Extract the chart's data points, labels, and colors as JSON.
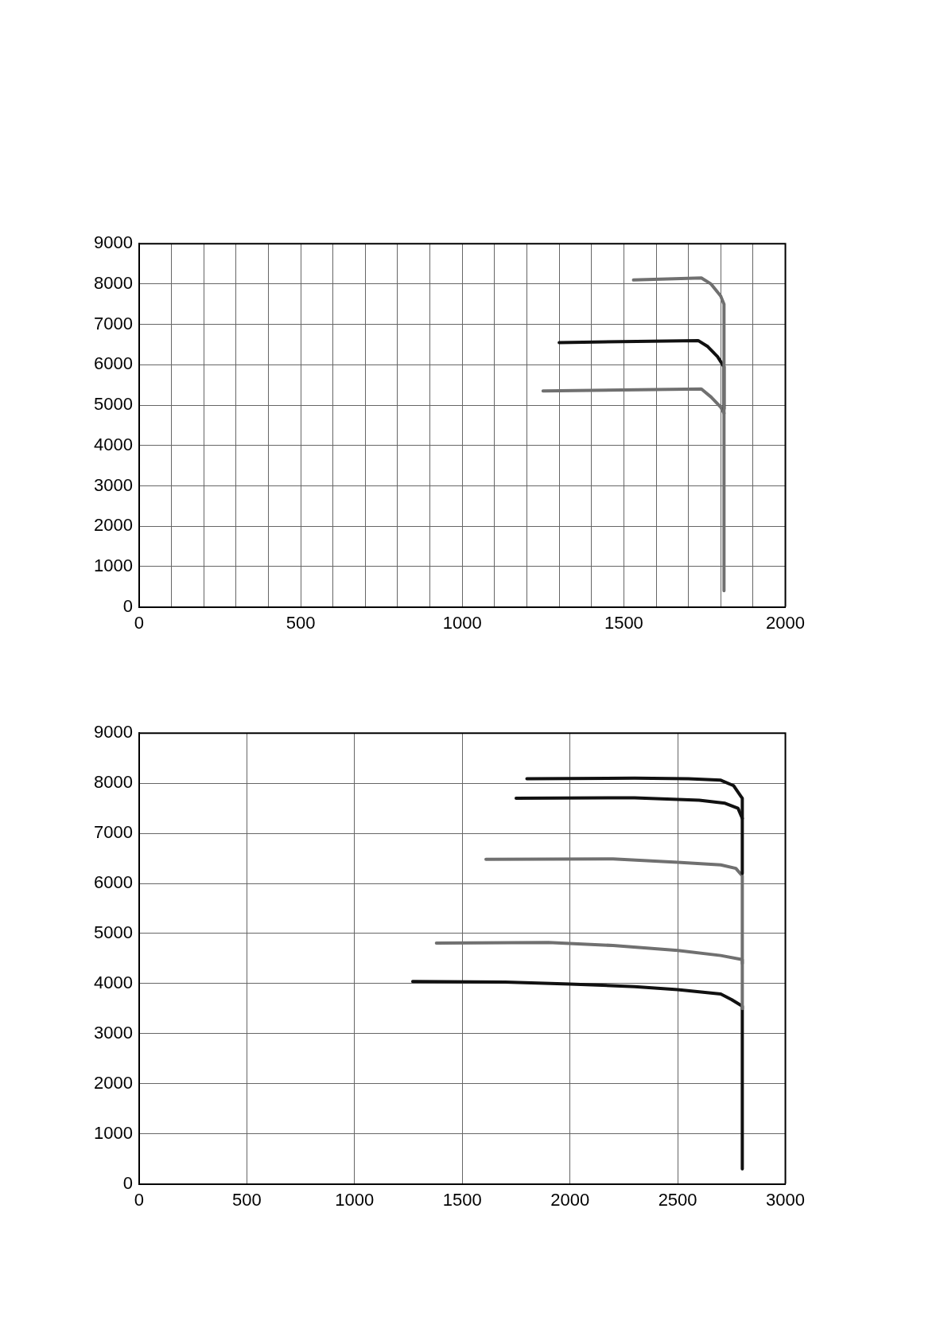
{
  "chart_data": [
    {
      "type": "line",
      "xlim": [
        0,
        2000
      ],
      "ylim": [
        0,
        9000
      ],
      "xticks": [
        0,
        {
          "value": 100,
          "label": null
        },
        {
          "value": 200,
          "label": null
        },
        {
          "value": 300,
          "label": null
        },
        {
          "value": 400,
          "label": null
        },
        500,
        {
          "value": 600,
          "label": null
        },
        {
          "value": 700,
          "label": null
        },
        {
          "value": 800,
          "label": null
        },
        {
          "value": 900,
          "label": null
        },
        1000,
        {
          "value": 1100,
          "label": null
        },
        {
          "value": 1200,
          "label": null
        },
        {
          "value": 1300,
          "label": null
        },
        {
          "value": 1400,
          "label": null
        },
        1500,
        {
          "value": 1600,
          "label": null
        },
        {
          "value": 1700,
          "label": null
        },
        {
          "value": 1800,
          "label": null
        },
        {
          "value": 1900,
          "label": null
        },
        2000
      ],
      "yticks": [
        0,
        1000,
        2000,
        3000,
        4000,
        5000,
        6000,
        7000,
        8000,
        9000
      ],
      "grid": true,
      "legend": false,
      "marker": "none",
      "line_style": "solid",
      "series": [
        {
          "color": "#707070",
          "x": [
            1530,
            1740,
            1770,
            1800,
            1810,
            1810
          ],
          "values": [
            8100,
            8150,
            8000,
            7700,
            7500,
            400
          ]
        },
        {
          "color": "#111111",
          "x": [
            1300,
            1730,
            1760,
            1790,
            1810,
            1810
          ],
          "values": [
            6550,
            6600,
            6450,
            6200,
            5950,
            4900
          ]
        },
        {
          "color": "#707070",
          "x": [
            1250,
            1740,
            1770,
            1800,
            1810
          ],
          "values": [
            5350,
            5400,
            5200,
            4950,
            4800
          ]
        }
      ]
    },
    {
      "type": "line",
      "xlim": [
        0,
        3000
      ],
      "ylim": [
        0,
        9000
      ],
      "xticks": [
        0,
        500,
        1000,
        1500,
        2000,
        2500,
        3000
      ],
      "yticks": [
        0,
        1000,
        2000,
        3000,
        4000,
        5000,
        6000,
        7000,
        8000,
        9000
      ],
      "grid": true,
      "legend": false,
      "marker": "none",
      "line_style": "solid",
      "series": [
        {
          "color": "#111111",
          "x": [
            1800,
            2300,
            2550,
            2700,
            2760,
            2800,
            2800
          ],
          "values": [
            8090,
            8100,
            8090,
            8060,
            7950,
            7700,
            6200
          ]
        },
        {
          "color": "#111111",
          "x": [
            1750,
            2300,
            2600,
            2720,
            2780,
            2800
          ],
          "values": [
            7700,
            7710,
            7660,
            7600,
            7500,
            7300
          ]
        },
        {
          "color": "#707070",
          "x": [
            1610,
            2200,
            2500,
            2700,
            2770,
            2800,
            2800
          ],
          "values": [
            6480,
            6490,
            6420,
            6370,
            6300,
            6150,
            4400
          ]
        },
        {
          "color": "#707070",
          "x": [
            1380,
            1900,
            2200,
            2500,
            2700,
            2800,
            2800
          ],
          "values": [
            4810,
            4820,
            4760,
            4660,
            4560,
            4480,
            3500
          ]
        },
        {
          "color": "#111111",
          "x": [
            1270,
            1700,
            2000,
            2300,
            2500,
            2700,
            2750,
            2800,
            2800
          ],
          "values": [
            4040,
            4030,
            3990,
            3940,
            3880,
            3790,
            3680,
            3550,
            300
          ]
        }
      ]
    }
  ]
}
